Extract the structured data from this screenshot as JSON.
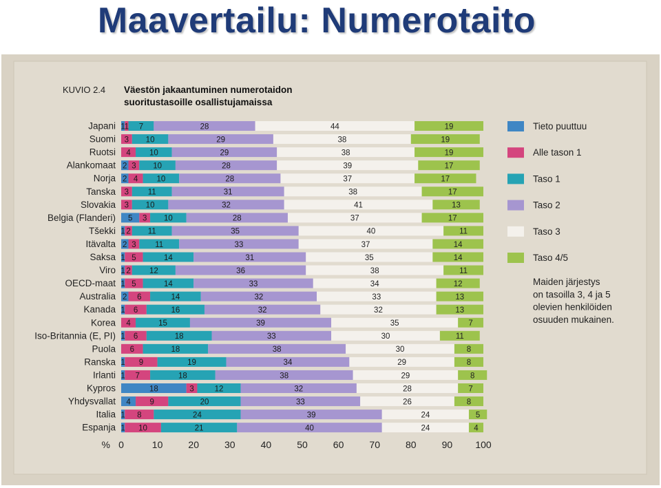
{
  "slide": {
    "title": "Maavertailu: Numerotaito"
  },
  "chart_data": {
    "type": "bar",
    "stacked": true,
    "orientation": "horizontal",
    "figure_label": "KUVIO 2.4",
    "title_line1": "Väestön jakaantuminen numerotaidon",
    "title_line2": "suoritustasoille osallistujamaissa",
    "xlabel": "%",
    "xlim": [
      0,
      100
    ],
    "xticks": [
      0,
      10,
      20,
      30,
      40,
      50,
      60,
      70,
      80,
      90,
      100
    ],
    "legend_position": "right",
    "legend_note": [
      "Maiden järjestys",
      "on tasoilla 3, 4 ja 5",
      "olevien henkilöiden",
      "osuuden mukainen."
    ],
    "categories": [
      "Japani",
      "Suomi",
      "Ruotsi",
      "Alankomaat",
      "Norja",
      "Tanska",
      "Slovakia",
      "Belgia (Flanderi)",
      "Tšekki",
      "Itävalta",
      "Saksa",
      "Viro",
      "OECD-maat",
      "Australia",
      "Kanada",
      "Korea",
      "Iso-Britannia (E, PI)",
      "Puola",
      "Ranska",
      "Irlanti",
      "Kypros",
      "Yhdysvallat",
      "Italia",
      "Espanja"
    ],
    "series": [
      {
        "name": "Tieto puuttuu",
        "color": "#3f86c4",
        "values": [
          1,
          0,
          0,
          2,
          2,
          0,
          0,
          5,
          1,
          2,
          1,
          1,
          1,
          2,
          1,
          0,
          1,
          0,
          1,
          1,
          18,
          4,
          1,
          1
        ]
      },
      {
        "name": "Alle tason 1",
        "color": "#d4457e",
        "values": [
          1,
          3,
          4,
          3,
          4,
          3,
          3,
          3,
          2,
          3,
          5,
          2,
          5,
          6,
          6,
          4,
          6,
          6,
          9,
          7,
          3,
          9,
          8,
          10
        ]
      },
      {
        "name": "Taso 1",
        "color": "#26a3b4",
        "values": [
          7,
          10,
          10,
          10,
          10,
          11,
          10,
          10,
          11,
          11,
          14,
          12,
          14,
          14,
          16,
          15,
          18,
          18,
          19,
          18,
          12,
          20,
          24,
          21
        ]
      },
      {
        "name": "Taso 2",
        "color": "#a696d0",
        "values": [
          28,
          29,
          29,
          28,
          28,
          31,
          32,
          28,
          35,
          33,
          31,
          36,
          33,
          32,
          32,
          39,
          33,
          38,
          34,
          38,
          32,
          33,
          39,
          40
        ]
      },
      {
        "name": "Taso 3",
        "color": "#f4f1ec",
        "values": [
          44,
          38,
          38,
          39,
          37,
          38,
          41,
          37,
          40,
          37,
          35,
          38,
          34,
          33,
          32,
          35,
          30,
          30,
          29,
          29,
          28,
          26,
          24,
          24
        ]
      },
      {
        "name": "Taso 4/5",
        "color": "#9dc34d",
        "values": [
          19,
          19,
          19,
          17,
          17,
          17,
          13,
          17,
          11,
          14,
          14,
          11,
          12,
          13,
          13,
          7,
          11,
          8,
          8,
          8,
          7,
          8,
          5,
          4
        ]
      }
    ]
  }
}
